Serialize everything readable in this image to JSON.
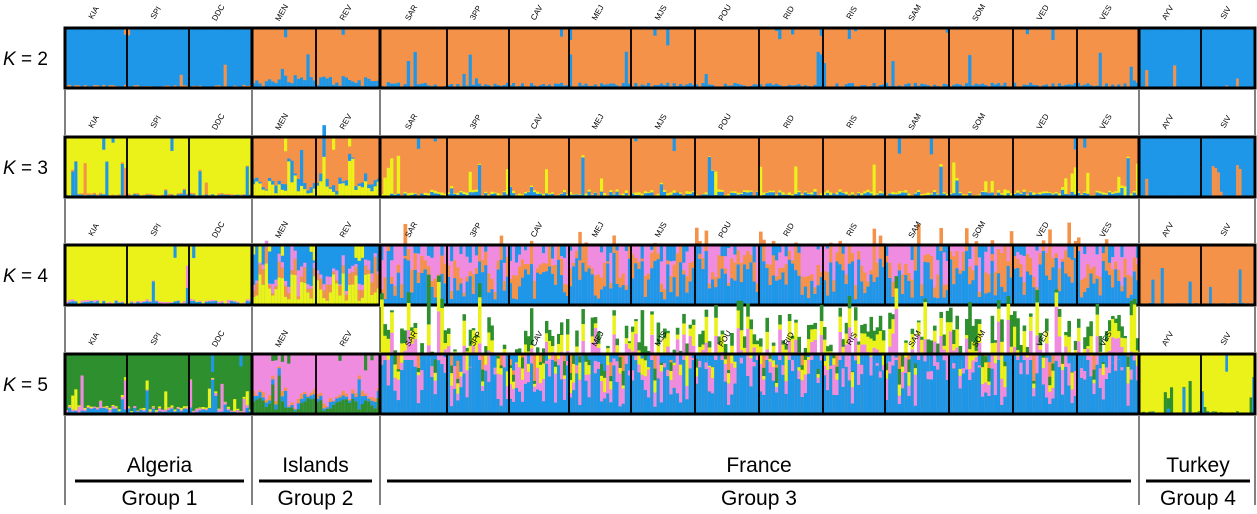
{
  "chart_data": {
    "type": "bar",
    "subtype": "stacked-admixture (STRUCTURE)",
    "populations": [
      "KIA",
      "SPI",
      "DDC",
      "MEN",
      "REV",
      "SAR",
      "3PP",
      "CAV",
      "MEJ",
      "MJS",
      "POU",
      "RID",
      "RIS",
      "SAM",
      "SOM",
      "VED",
      "VES",
      "AYV",
      "SIV"
    ],
    "colors": {
      "blue": "#1f97e8",
      "orange": "#f5924a",
      "yellow": "#eaf21a",
      "pink": "#f08ce0",
      "green": "#2d8f2d"
    },
    "regions": [
      {
        "name": "Algeria",
        "group": "Group 1",
        "populations": [
          "KIA",
          "SPI",
          "DDC"
        ]
      },
      {
        "name": "Islands",
        "group": "Group 2",
        "populations": [
          "MEN",
          "REV"
        ]
      },
      {
        "name": "France",
        "group": "Group 3",
        "populations": [
          "SAR",
          "3PP",
          "CAV",
          "MEJ",
          "MJS",
          "POU",
          "RID",
          "RIS",
          "SAM",
          "SOM",
          "VED",
          "VES"
        ]
      },
      {
        "name": "Turkey",
        "group": "Group 4",
        "populations": [
          "AYV",
          "SIV"
        ]
      }
    ],
    "panels": [
      {
        "k_prefix": "K",
        "k_suffix": " = 2",
        "k": 2,
        "groups": [
          {
            "label": "Algeria",
            "base": "blue",
            "minor": [
              "orange"
            ],
            "minor_level": 0.03
          },
          {
            "label": "Islands",
            "base": "orange",
            "minor": [
              "blue"
            ],
            "minor_level": 0.12
          },
          {
            "label": "France",
            "base": "orange",
            "minor": [
              "blue"
            ],
            "minor_level": 0.05
          },
          {
            "label": "Turkey",
            "base": "blue",
            "minor": [
              "orange"
            ],
            "minor_level": 0.01
          }
        ]
      },
      {
        "k_prefix": "K",
        "k_suffix": " = 3",
        "k": 3,
        "groups": [
          {
            "label": "Algeria",
            "base": "yellow",
            "minor": [
              "blue",
              "orange"
            ],
            "minor_level": 0.03
          },
          {
            "label": "Islands",
            "base": "orange",
            "minor": [
              "yellow",
              "blue"
            ],
            "minor_level": 0.15
          },
          {
            "label": "France",
            "base": "orange",
            "minor": [
              "blue",
              "yellow"
            ],
            "minor_level": 0.05
          },
          {
            "label": "Turkey",
            "base": "blue",
            "minor": [
              "orange"
            ],
            "minor_level": 0.01
          }
        ]
      },
      {
        "k_prefix": "K",
        "k_suffix": " = 4",
        "k": 4,
        "groups": [
          {
            "label": "Algeria",
            "base": "yellow",
            "minor": [
              "blue",
              "pink"
            ],
            "minor_level": 0.04
          },
          {
            "label": "Islands",
            "base": "blue",
            "minor": [
              "yellow",
              "orange",
              "pink"
            ],
            "minor_level": 0.3
          },
          {
            "label": "France",
            "base": "pink",
            "minor": [
              "blue",
              "orange"
            ],
            "minor_level": 0.45
          },
          {
            "label": "Turkey",
            "base": "orange",
            "minor": [
              "blue"
            ],
            "minor_level": 0.02
          }
        ]
      },
      {
        "k_prefix": "K",
        "k_suffix": " = 5",
        "k": 5,
        "groups": [
          {
            "label": "Algeria",
            "base": "green",
            "minor": [
              "blue",
              "pink",
              "yellow"
            ],
            "minor_level": 0.06
          },
          {
            "label": "Islands",
            "base": "pink",
            "minor": [
              "green",
              "blue",
              "orange"
            ],
            "minor_level": 0.15
          },
          {
            "label": "France",
            "base": "orange",
            "minor": [
              "blue",
              "pink",
              "yellow",
              "green"
            ],
            "minor_level": 0.6
          },
          {
            "label": "Turkey",
            "base": "yellow",
            "minor": [
              "blue",
              "green"
            ],
            "minor_level": 0.02
          }
        ]
      }
    ],
    "legend": "none",
    "grid": false
  }
}
